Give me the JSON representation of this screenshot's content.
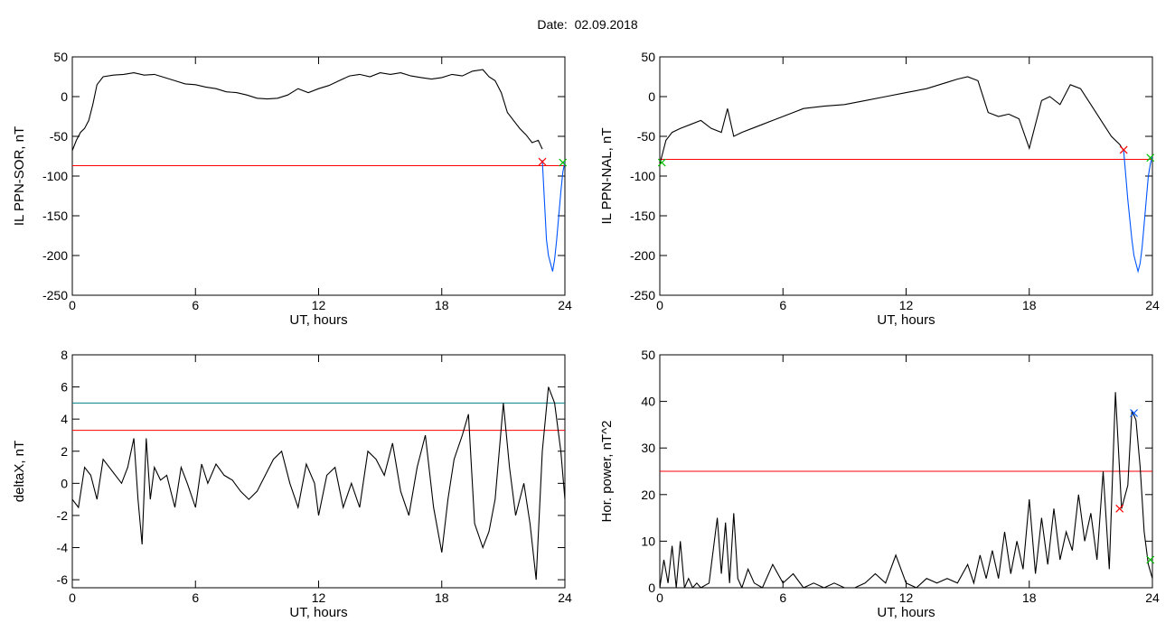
{
  "title": "Date:  02.09.2018",
  "colors": {
    "black": "#000000",
    "red": "#ff0000",
    "blue": "#0055ff",
    "teal": "#008080",
    "green": "#00bb00"
  },
  "chart_data": [
    {
      "id": "sor",
      "type": "line",
      "xlabel": "UT, hours",
      "ylabel": "IL PPN-SOR, nT",
      "xlim": [
        0,
        24
      ],
      "ylim": [
        -250,
        50
      ],
      "xticks": [
        "0",
        "6",
        "12",
        "18",
        "24"
      ],
      "yticks": [
        "50",
        "0",
        "-50",
        "-100",
        "-150",
        "-200",
        "-250"
      ],
      "series": [
        {
          "x": [
            0,
            0.2,
            0.4,
            0.6,
            0.8,
            1.0,
            1.2,
            1.5,
            2.0,
            2.5,
            3.0,
            3.5,
            4.0,
            4.5,
            5.0,
            5.5,
            6.0,
            6.5,
            7.0,
            7.5,
            8.0,
            8.5,
            9.0,
            9.5,
            10.0,
            10.5,
            11.0,
            11.5,
            12.0,
            12.5,
            13.0,
            13.5,
            14.0,
            14.5,
            15.0,
            15.5,
            16.0,
            16.5,
            17.0,
            17.5,
            18.0,
            18.5,
            19.0,
            19.5,
            20.0,
            20.3,
            20.6,
            20.9,
            21.2,
            21.5,
            21.8,
            22.1,
            22.4,
            22.7,
            22.9
          ],
          "y": [
            -68,
            -55,
            -45,
            -40,
            -30,
            -10,
            15,
            25,
            27,
            28,
            30,
            27,
            28,
            24,
            20,
            16,
            15,
            12,
            10,
            6,
            5,
            2,
            -2,
            -3,
            -2,
            2,
            10,
            5,
            10,
            14,
            20,
            26,
            28,
            25,
            30,
            28,
            30,
            26,
            24,
            22,
            24,
            28,
            26,
            32,
            34,
            25,
            20,
            5,
            -20,
            -30,
            -40,
            -48,
            -58,
            -55,
            -66
          ]
        },
        {
          "x": [
            22.9,
            23.0,
            23.1,
            23.2,
            23.3,
            23.4,
            23.5,
            23.6,
            23.7,
            23.8,
            23.9,
            24.0
          ],
          "y": [
            -80,
            -130,
            -180,
            -200,
            -210,
            -220,
            -205,
            -180,
            -150,
            -120,
            -95,
            -82
          ],
          "color": "blue"
        }
      ],
      "hlines": [
        {
          "y": -87,
          "color": "red"
        }
      ],
      "markers": [
        {
          "x": 22.9,
          "y": -82,
          "color": "red"
        },
        {
          "x": 23.9,
          "y": -83,
          "color": "green"
        }
      ]
    },
    {
      "id": "nal",
      "type": "line",
      "xlabel": "UT, hours",
      "ylabel": "IL PPN-NAL, nT",
      "xlim": [
        0,
        24
      ],
      "ylim": [
        -250,
        50
      ],
      "xticks": [
        "0",
        "6",
        "12",
        "18",
        "24"
      ],
      "yticks": [
        "50",
        "0",
        "-50",
        "-100",
        "-150",
        "-200",
        "-250"
      ],
      "series": [
        {
          "x": [
            0,
            0.3,
            0.6,
            1.0,
            1.5,
            2.0,
            2.5,
            3.0,
            3.3,
            3.6,
            4.0,
            4.5,
            5.0,
            5.5,
            6.0,
            6.5,
            7.0,
            8.0,
            9.0,
            10.0,
            11.0,
            12.0,
            13.0,
            14.0,
            14.5,
            15.0,
            15.5,
            16.0,
            16.5,
            17.0,
            17.5,
            18.0,
            18.3,
            18.6,
            19.0,
            19.5,
            20.0,
            20.5,
            21.0,
            21.5,
            22.0,
            22.4,
            22.6
          ],
          "y": [
            -85,
            -55,
            -45,
            -40,
            -35,
            -30,
            -40,
            -45,
            -15,
            -50,
            -45,
            -40,
            -35,
            -30,
            -25,
            -20,
            -15,
            -12,
            -10,
            -5,
            0,
            5,
            10,
            18,
            22,
            25,
            20,
            -20,
            -25,
            -22,
            -28,
            -65,
            -35,
            -5,
            0,
            -10,
            15,
            10,
            -10,
            -30,
            -50,
            -60,
            -68
          ]
        },
        {
          "x": [
            22.6,
            22.8,
            23.0,
            23.1,
            23.2,
            23.3,
            23.4,
            23.5,
            23.6,
            23.7,
            23.8,
            23.9,
            24.0
          ],
          "y": [
            -68,
            -130,
            -180,
            -200,
            -210,
            -220,
            -210,
            -190,
            -160,
            -130,
            -100,
            -85,
            -75
          ],
          "color": "blue"
        }
      ],
      "hlines": [
        {
          "y": -79,
          "color": "red"
        }
      ],
      "markers": [
        {
          "x": 22.6,
          "y": -67,
          "color": "red"
        },
        {
          "x": 0.1,
          "y": -83,
          "color": "green"
        },
        {
          "x": 23.9,
          "y": -77,
          "color": "green"
        }
      ]
    },
    {
      "id": "deltax",
      "type": "line",
      "xlabel": "UT, hours",
      "ylabel": "deltaX, nT",
      "xlim": [
        0,
        24
      ],
      "ylim": [
        -6.5,
        8
      ],
      "yticks_values": [
        8,
        6,
        4,
        2,
        0,
        -2,
        -4,
        -6
      ],
      "xticks": [
        "0",
        "6",
        "12",
        "18",
        "24"
      ],
      "yticks": [
        "8",
        "6",
        "4",
        "2",
        "0",
        "-2",
        "-4",
        "-6"
      ],
      "series": [
        {
          "x": [
            0,
            0.3,
            0.6,
            0.9,
            1.2,
            1.5,
            1.8,
            2.1,
            2.4,
            2.7,
            3.0,
            3.2,
            3.4,
            3.6,
            3.8,
            4.0,
            4.3,
            4.6,
            5.0,
            5.3,
            5.6,
            6.0,
            6.3,
            6.6,
            7.0,
            7.4,
            7.8,
            8.2,
            8.6,
            9.0,
            9.4,
            9.8,
            10.2,
            10.6,
            11.0,
            11.4,
            11.8,
            12.0,
            12.4,
            12.8,
            13.2,
            13.6,
            14.0,
            14.4,
            14.8,
            15.2,
            15.6,
            16.0,
            16.4,
            16.8,
            17.2,
            17.6,
            18.0,
            18.3,
            18.6,
            19.0,
            19.3,
            19.6,
            20.0,
            20.3,
            20.6,
            21.0,
            21.3,
            21.6,
            22.0,
            22.3,
            22.6,
            22.9,
            23.2,
            23.5,
            23.8,
            24.0
          ],
          "y": [
            -1,
            -1.5,
            1,
            0.5,
            -1,
            1.5,
            1,
            0.5,
            0,
            1,
            2.8,
            -1,
            -3.8,
            2.8,
            -1,
            1,
            0.2,
            0.5,
            -1.5,
            1,
            0,
            -1.5,
            1.2,
            0,
            1.2,
            0.5,
            0.2,
            -0.5,
            -1,
            -0.5,
            0.5,
            1.5,
            2,
            0,
            -1.5,
            1.2,
            0,
            -2,
            0.5,
            1,
            -1.5,
            0,
            -1.5,
            2,
            1.5,
            0.5,
            2.5,
            -0.5,
            -2,
            1,
            3,
            -1.5,
            -4.3,
            -1,
            1.5,
            3,
            4.3,
            -2.5,
            -4,
            -3,
            -1,
            5,
            1,
            -2,
            0,
            -2.5,
            -6,
            2,
            6,
            5,
            2,
            -1
          ]
        }
      ],
      "hlines": [
        {
          "y": 5,
          "color": "teal"
        },
        {
          "y": 3.3,
          "color": "red"
        }
      ],
      "markers": []
    },
    {
      "id": "power",
      "type": "line",
      "xlabel": "UT, hours",
      "ylabel": "Hor. power, nT^2",
      "xlim": [
        0,
        24
      ],
      "ylim": [
        0,
        50
      ],
      "xticks": [
        "0",
        "6",
        "12",
        "18",
        "24"
      ],
      "yticks": [
        "50",
        "40",
        "30",
        "20",
        "10",
        "0"
      ],
      "series": [
        {
          "x": [
            0,
            0.2,
            0.4,
            0.6,
            0.8,
            1.0,
            1.2,
            1.4,
            1.6,
            1.8,
            2.0,
            2.4,
            2.8,
            3.0,
            3.2,
            3.4,
            3.6,
            3.8,
            4.0,
            4.3,
            4.6,
            5.0,
            5.5,
            6.0,
            6.5,
            7.0,
            7.5,
            8.0,
            8.5,
            9.0,
            9.5,
            10.0,
            10.5,
            11.0,
            11.5,
            12.0,
            12.5,
            13.0,
            13.5,
            14.0,
            14.5,
            15.0,
            15.3,
            15.6,
            15.9,
            16.2,
            16.5,
            16.8,
            17.1,
            17.4,
            17.7,
            18.0,
            18.3,
            18.6,
            18.9,
            19.2,
            19.5,
            19.8,
            20.1,
            20.4,
            20.7,
            21.0,
            21.3,
            21.6,
            21.9,
            22.2,
            22.5,
            22.8,
            23.0,
            23.2,
            23.4,
            23.6,
            23.8,
            24.0
          ],
          "y": [
            0,
            6,
            1,
            9,
            0,
            10,
            0,
            2,
            0,
            1,
            0,
            1,
            15,
            3,
            14,
            1,
            16,
            2,
            0,
            4,
            1,
            0,
            5,
            1,
            3,
            0,
            1,
            0,
            1,
            0,
            0,
            1,
            3,
            1,
            7,
            1,
            0,
            2,
            1,
            2,
            1,
            5,
            1,
            7,
            2,
            8,
            2,
            12,
            3,
            10,
            4,
            19,
            3,
            15,
            5,
            17,
            6,
            12,
            8,
            20,
            10,
            16,
            6,
            25,
            4,
            42,
            17,
            22,
            38,
            36,
            26,
            12,
            5,
            2
          ]
        }
      ],
      "hlines": [
        {
          "y": 25,
          "color": "red"
        }
      ],
      "markers": [
        {
          "x": 22.4,
          "y": 17,
          "color": "red"
        },
        {
          "x": 23.1,
          "y": 37.5,
          "color": "blue"
        },
        {
          "x": 23.9,
          "y": 6,
          "color": "green"
        }
      ]
    }
  ]
}
